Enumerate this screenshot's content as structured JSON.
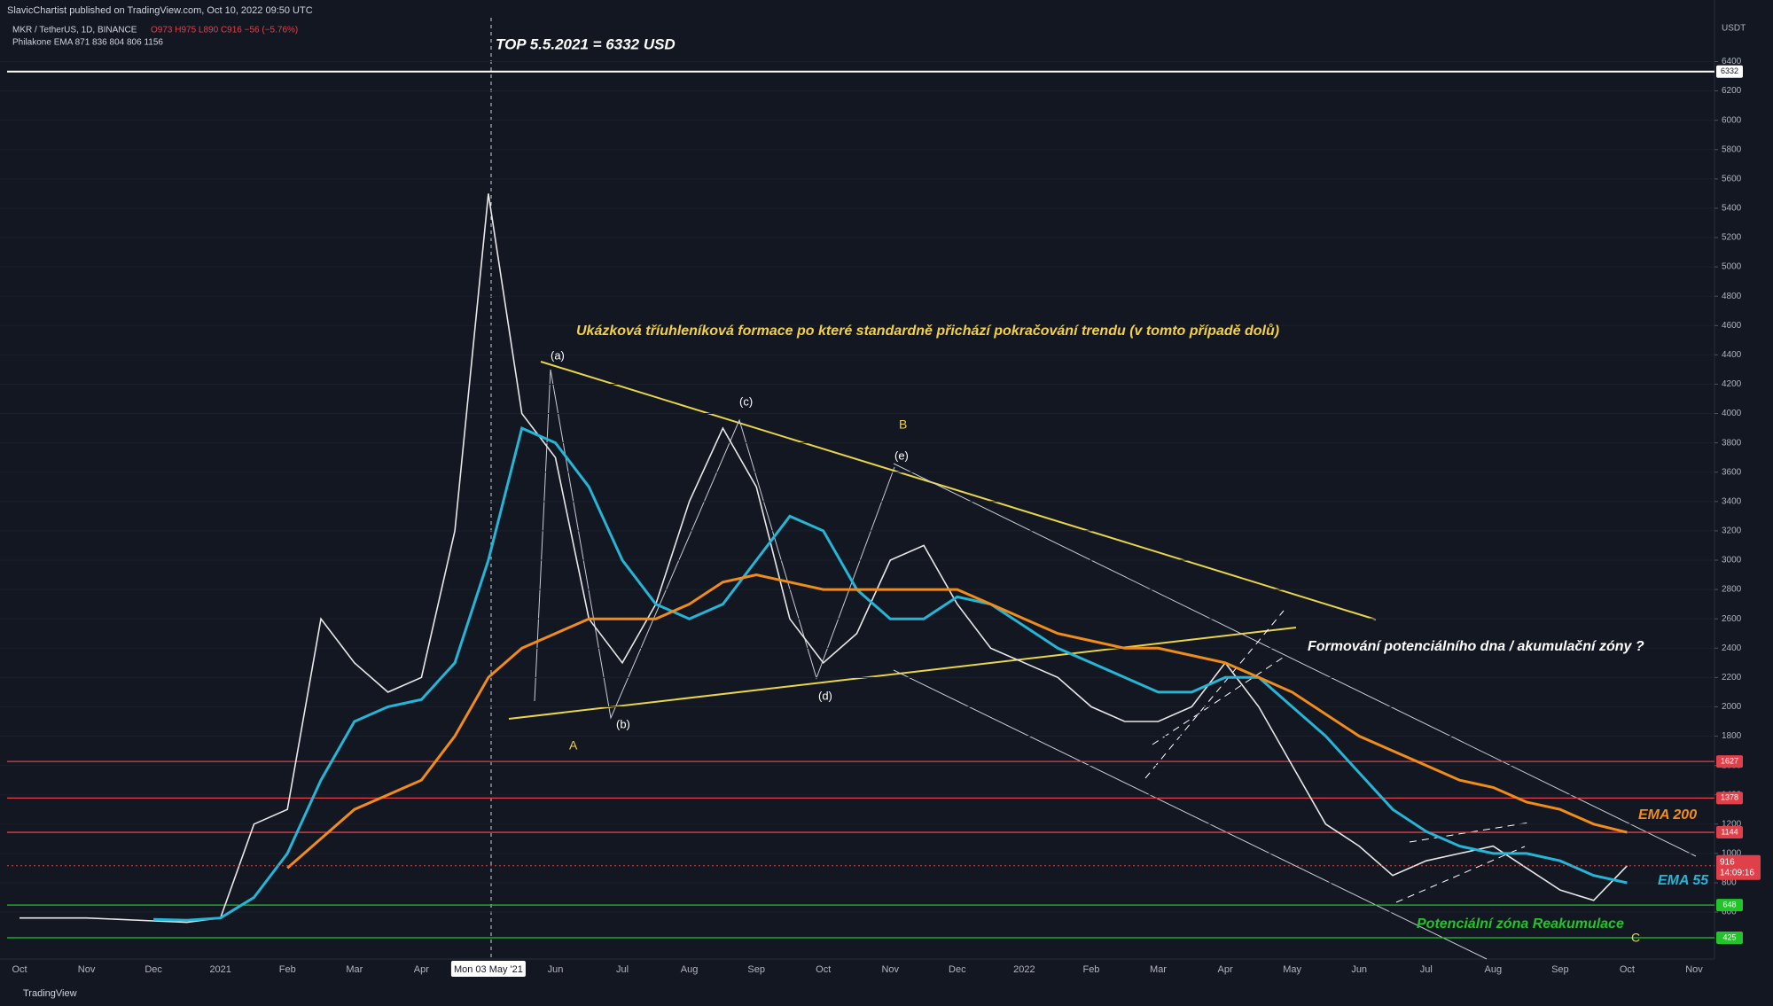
{
  "chart_data": {
    "type": "line",
    "header": {
      "publisher": "SlavicChartist published on TradingView.com, Oct 10, 2022 09:50 UTC",
      "symbol": "MKR / TetherUS, 1D, BINANCE",
      "ohlc": "O973 H975 L890 C916 −56 (−5.76%)",
      "indicator": "Philakone EMA 871 836 804 806 1156"
    },
    "y_axis_label": "USDT",
    "footer": "TradingView",
    "categories": [
      "Oct",
      null,
      "Nov",
      null,
      "Dec",
      null,
      "2021",
      null,
      "Feb",
      null,
      "Mar",
      null,
      "Apr",
      null,
      "Mon 03 May '21",
      null,
      "Jun",
      null,
      "Jul",
      null,
      "Aug",
      null,
      "Sep",
      null,
      "Oct",
      null,
      "Nov",
      null,
      "Dec",
      null,
      "2022",
      null,
      "Feb",
      null,
      "Mar",
      null,
      "Apr",
      null,
      "May",
      null,
      "Jun",
      null,
      "Jul",
      null,
      "Aug",
      null,
      "Sep",
      null,
      "Oct",
      null,
      "Nov"
    ],
    "series": [
      {
        "name": "MKR",
        "color": "#e8e8e8",
        "values": [
          560,
          560,
          560,
          550,
          540,
          530,
          560,
          1200,
          1300,
          2600,
          2300,
          2100,
          2200,
          3200,
          5500,
          4000,
          3700,
          2600,
          2300,
          2700,
          3400,
          3900,
          3500,
          2600,
          2300,
          2500,
          3000,
          3100,
          2700,
          2400,
          2300,
          2200,
          2000,
          1900,
          1900,
          2000,
          2300,
          2000,
          1600,
          1200,
          1050,
          850,
          950,
          1000,
          1050,
          900,
          750,
          680,
          916,
          null,
          null
        ]
      },
      {
        "name": "EMA 55",
        "color": "#26b5d6",
        "values": [
          null,
          null,
          null,
          null,
          550,
          545,
          560,
          700,
          1000,
          1500,
          1900,
          2000,
          2050,
          2300,
          3000,
          3900,
          3800,
          3500,
          3000,
          2700,
          2600,
          2700,
          3000,
          3300,
          3200,
          2800,
          2600,
          2600,
          2750,
          2700,
          2550,
          2400,
          2300,
          2200,
          2100,
          2100,
          2200,
          2200,
          2000,
          1800,
          1550,
          1300,
          1150,
          1050,
          1000,
          1000,
          950,
          850,
          800,
          null,
          null
        ]
      },
      {
        "name": "EMA 200",
        "color": "#f08c1a",
        "values": [
          null,
          null,
          null,
          null,
          null,
          null,
          null,
          null,
          900,
          1100,
          1300,
          1400,
          1500,
          1800,
          2200,
          2400,
          2500,
          2600,
          2600,
          2600,
          2700,
          2850,
          2900,
          2850,
          2800,
          2800,
          2800,
          2800,
          2800,
          2700,
          2600,
          2500,
          2450,
          2400,
          2400,
          2350,
          2300,
          2200,
          2100,
          1950,
          1800,
          1700,
          1600,
          1500,
          1450,
          1350,
          1300,
          1200,
          1144,
          null,
          null
        ]
      }
    ],
    "ylim": [
      280,
      6820
    ],
    "yticks": [
      600,
      800,
      1000,
      1200,
      1400,
      1600,
      1800,
      2000,
      2200,
      2400,
      2600,
      2800,
      3000,
      3200,
      3400,
      3600,
      3800,
      4000,
      4200,
      4400,
      4600,
      4800,
      5000,
      5200,
      5400,
      5600,
      5800,
      6000,
      6200,
      6400
    ],
    "levels": [
      {
        "value": 6332,
        "color": "#ffffff"
      },
      {
        "value": 1627,
        "color": "#e0404a"
      },
      {
        "value": 1378,
        "color": "#e0404a"
      },
      {
        "value": 1144,
        "color": "#e0404a"
      },
      {
        "value": 648,
        "color": "#22c42a"
      },
      {
        "value": 425,
        "color": "#22c42a"
      }
    ],
    "last_price": {
      "value": 916,
      "countdown": "14:09:16",
      "color": "#e0404a"
    },
    "annotations": [
      {
        "text": "TOP 5.5.2021 = 6332 USD",
        "color": "#ffffff"
      },
      {
        "text": "Ukázková tříuhleníková formace po které standardně přichází pokračování trendu (v tomto případě dolů)",
        "color": "#f2d04a"
      },
      {
        "text": "(a)",
        "color": "#ffffff"
      },
      {
        "text": "(b)",
        "color": "#ffffff"
      },
      {
        "text": "(c)",
        "color": "#ffffff"
      },
      {
        "text": "(d)",
        "color": "#ffffff"
      },
      {
        "text": "(e)",
        "color": "#ffffff"
      },
      {
        "text": "A",
        "color": "#f2d04a"
      },
      {
        "text": "B",
        "color": "#f2d04a"
      },
      {
        "text": "C",
        "color": "#f2d04a"
      },
      {
        "text": "Formování potenciálního dna / akumulační zóny ?",
        "color": "#ffffff"
      },
      {
        "text": "EMA 200",
        "color": "#f08c1a"
      },
      {
        "text": "EMA 55",
        "color": "#26b5d6"
      },
      {
        "text": "Potenciální zóna Reakumulace",
        "color": "#22c42a"
      }
    ]
  }
}
